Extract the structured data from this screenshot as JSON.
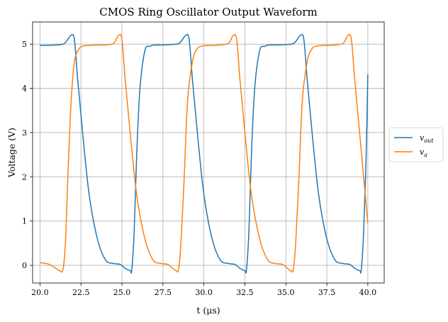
{
  "chart_data": {
    "type": "line",
    "title": "CMOS Ring Oscillator Output Waveform",
    "xlabel": "t (μs)",
    "ylabel": "Voltage (V)",
    "xlim": [
      19.55,
      41.0
    ],
    "ylim": [
      -0.4,
      5.5
    ],
    "xticks": [
      20.0,
      22.5,
      25.0,
      27.5,
      30.0,
      32.5,
      35.0,
      37.5,
      40.0
    ],
    "xtick_labels": [
      "20.0",
      "22.5",
      "25.0",
      "27.5",
      "30.0",
      "32.5",
      "35.0",
      "37.5",
      "40.0"
    ],
    "yticks": [
      0,
      1,
      2,
      3,
      4,
      5
    ],
    "ytick_labels": [
      "0",
      "1",
      "2",
      "3",
      "4",
      "5"
    ],
    "grid": true,
    "legend_position": "right-outside",
    "series": [
      {
        "name": "v_out",
        "label_base": "v",
        "label_sub": "out",
        "color": "#1f77b4",
        "x": [
          20.0,
          21.0,
          21.5,
          21.9,
          22.1,
          22.3,
          22.6,
          23.0,
          23.5,
          24.0,
          24.5,
          24.9,
          25.2,
          25.5,
          25.6,
          25.75,
          25.9,
          26.1,
          26.4,
          26.7,
          27.0,
          27.5,
          28.0,
          28.5,
          28.9,
          29.1,
          29.3,
          29.6,
          30.0,
          30.5,
          31.0,
          31.5,
          31.9,
          32.2,
          32.5,
          32.6,
          32.75,
          32.9,
          33.1,
          33.4,
          33.7,
          34.0,
          34.5,
          35.0,
          35.5,
          35.9,
          36.1,
          36.3,
          36.6,
          37.0,
          37.5,
          38.0,
          38.5,
          38.9,
          39.2,
          39.5,
          39.6,
          39.75,
          39.9,
          40.0
        ],
        "y": [
          4.97,
          4.98,
          5.02,
          5.2,
          5.1,
          4.2,
          3.0,
          1.6,
          0.6,
          0.12,
          0.04,
          0.02,
          -0.07,
          -0.12,
          -0.1,
          0.8,
          2.5,
          4.0,
          4.85,
          4.95,
          4.98,
          4.98,
          4.99,
          5.02,
          5.2,
          5.1,
          4.2,
          3.0,
          1.6,
          0.6,
          0.12,
          0.04,
          0.02,
          -0.07,
          -0.12,
          -0.1,
          0.8,
          2.5,
          4.0,
          4.85,
          4.95,
          4.98,
          4.98,
          4.99,
          5.02,
          5.2,
          5.1,
          4.2,
          3.0,
          1.6,
          0.6,
          0.12,
          0.04,
          0.02,
          -0.07,
          -0.12,
          -0.1,
          0.8,
          2.5,
          4.32
        ]
      },
      {
        "name": "v_a",
        "label_base": "v",
        "label_sub": "a",
        "color": "#ff7f0e",
        "x": [
          20.0,
          20.5,
          20.9,
          21.2,
          21.4,
          21.55,
          21.7,
          21.9,
          22.1,
          22.4,
          22.7,
          23.0,
          23.5,
          24.0,
          24.5,
          24.8,
          25.0,
          25.2,
          25.5,
          25.9,
          26.4,
          26.9,
          27.4,
          27.8,
          28.1,
          28.3,
          28.45,
          28.6,
          28.8,
          29.0,
          29.3,
          29.6,
          30.0,
          30.5,
          31.0,
          31.5,
          31.8,
          32.0,
          32.2,
          32.5,
          32.9,
          33.4,
          33.9,
          34.4,
          34.8,
          35.1,
          35.3,
          35.45,
          35.6,
          35.8,
          36.0,
          36.3,
          36.6,
          37.0,
          37.5,
          38.0,
          38.5,
          38.8,
          39.0,
          39.2,
          39.5,
          40.0
        ],
        "y": [
          0.06,
          0.03,
          -0.05,
          -0.12,
          -0.1,
          0.5,
          2.0,
          3.7,
          4.6,
          4.9,
          4.96,
          4.97,
          4.98,
          4.98,
          5.02,
          5.2,
          5.1,
          4.2,
          3.0,
          1.6,
          0.6,
          0.12,
          0.04,
          0.02,
          -0.07,
          -0.12,
          -0.1,
          0.5,
          2.0,
          3.7,
          4.6,
          4.9,
          4.96,
          4.97,
          4.98,
          5.02,
          5.2,
          5.1,
          4.2,
          3.0,
          1.6,
          0.6,
          0.12,
          0.04,
          0.02,
          -0.07,
          -0.12,
          -0.1,
          0.5,
          2.0,
          3.7,
          4.6,
          4.9,
          4.96,
          4.97,
          4.98,
          5.02,
          5.2,
          5.1,
          4.2,
          3.0,
          0.95
        ]
      }
    ]
  }
}
